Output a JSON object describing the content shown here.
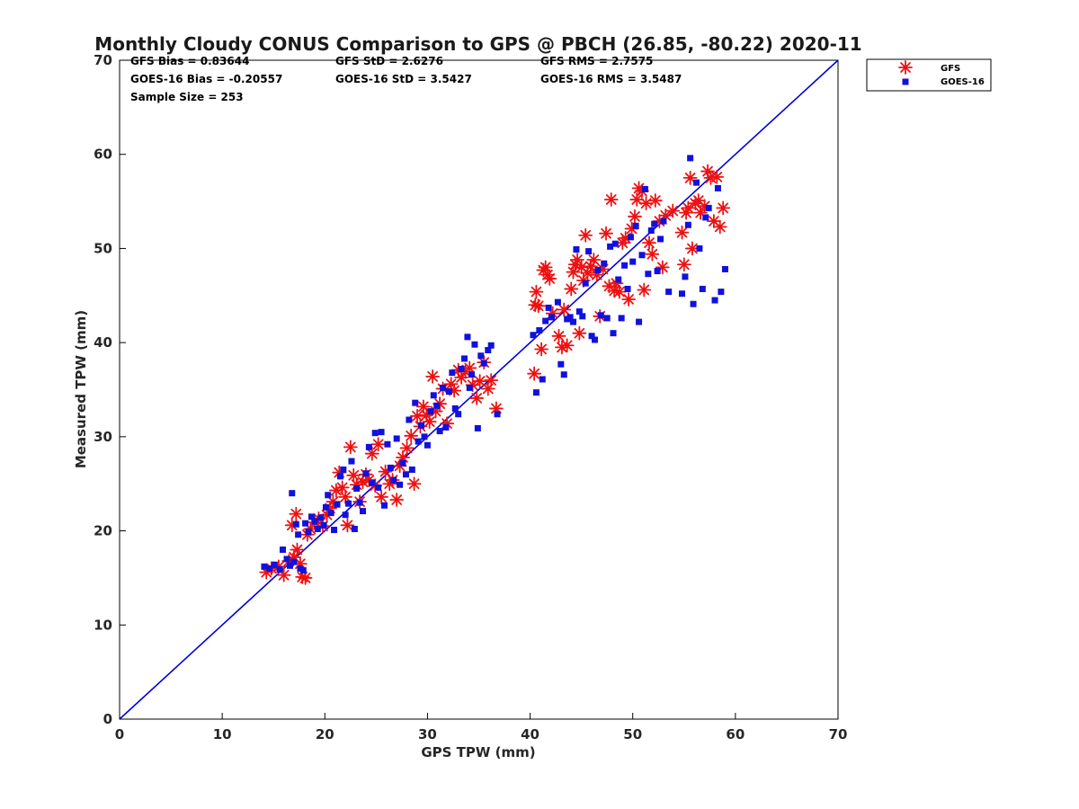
{
  "chart_data": {
    "type": "scatter",
    "title": "Monthly Cloudy CONUS Comparison to GPS @ PBCH (26.85, -80.22) 2020-11",
    "xlabel": "GPS TPW (mm)",
    "ylabel": "Measured TPW (mm)",
    "xlim": [
      0,
      70
    ],
    "ylim": [
      0,
      70
    ],
    "xticks": [
      "0",
      "10",
      "20",
      "30",
      "40",
      "50",
      "60",
      "70"
    ],
    "yticks": [
      "0",
      "10",
      "20",
      "30",
      "40",
      "50",
      "60",
      "70"
    ],
    "grid": false,
    "legend_position": "top-right outside",
    "stats": {
      "gfs_bias": "GFS Bias = 0.83644",
      "goes_bias": "GOES-16 Bias = -0.20557",
      "sample_size": "Sample Size = 253",
      "gfs_std": "GFS StD = 2.6276",
      "goes_std": "GOES-16 StD = 3.5427",
      "gfs_rms": "GFS RMS = 2.7575",
      "goes_rms": "GOES-16 RMS = 3.5487"
    },
    "reference_line": {
      "x": [
        0,
        70
      ],
      "y": [
        0,
        70
      ],
      "color": "#0000dd"
    },
    "series": [
      {
        "name": "GFS",
        "marker": "asterisk",
        "color": "#ee1111",
        "points": [
          [
            14.3,
            15.6
          ],
          [
            14.8,
            16.0
          ],
          [
            15.5,
            16.2
          ],
          [
            16.0,
            15.3
          ],
          [
            16.5,
            16.8
          ],
          [
            17.0,
            17.2
          ],
          [
            17.2,
            21.8
          ],
          [
            16.8,
            20.6
          ],
          [
            17.3,
            18.0
          ],
          [
            17.6,
            16.5
          ],
          [
            17.8,
            15.1
          ],
          [
            18.1,
            15.0
          ],
          [
            18.3,
            19.6
          ],
          [
            18.6,
            20.2
          ],
          [
            19.0,
            20.9
          ],
          [
            19.4,
            21.3
          ],
          [
            19.8,
            20.5
          ],
          [
            20.2,
            21.7
          ],
          [
            20.5,
            22.4
          ],
          [
            20.8,
            23.1
          ],
          [
            21.1,
            24.3
          ],
          [
            21.4,
            26.2
          ],
          [
            21.7,
            24.6
          ],
          [
            22.0,
            23.6
          ],
          [
            22.2,
            20.6
          ],
          [
            22.5,
            28.9
          ],
          [
            22.8,
            25.9
          ],
          [
            23.1,
            24.9
          ],
          [
            23.4,
            23.1
          ],
          [
            23.7,
            25.2
          ],
          [
            24.0,
            26.0
          ],
          [
            24.3,
            25.4
          ],
          [
            24.6,
            28.2
          ],
          [
            24.9,
            24.8
          ],
          [
            25.2,
            29.2
          ],
          [
            25.5,
            23.6
          ],
          [
            25.9,
            26.3
          ],
          [
            26.3,
            25.0
          ],
          [
            26.6,
            25.4
          ],
          [
            27.0,
            23.3
          ],
          [
            27.3,
            26.9
          ],
          [
            27.6,
            27.8
          ],
          [
            28.0,
            28.8
          ],
          [
            28.4,
            30.1
          ],
          [
            28.7,
            25.0
          ],
          [
            29.0,
            32.2
          ],
          [
            29.3,
            31.1
          ],
          [
            29.6,
            33.2
          ],
          [
            29.9,
            32.3
          ],
          [
            30.2,
            31.6
          ],
          [
            30.5,
            36.4
          ],
          [
            30.8,
            32.7
          ],
          [
            31.2,
            33.5
          ],
          [
            31.5,
            35.1
          ],
          [
            31.9,
            31.4
          ],
          [
            32.3,
            35.6
          ],
          [
            32.6,
            34.9
          ],
          [
            33.0,
            37.1
          ],
          [
            33.3,
            36.3
          ],
          [
            33.7,
            36.9
          ],
          [
            34.1,
            37.3
          ],
          [
            34.4,
            35.5
          ],
          [
            34.8,
            34.1
          ],
          [
            35.1,
            35.9
          ],
          [
            35.5,
            37.9
          ],
          [
            35.9,
            35.1
          ],
          [
            36.2,
            36.0
          ],
          [
            36.7,
            33.0
          ],
          [
            40.4,
            36.7
          ],
          [
            40.5,
            44.0
          ],
          [
            40.6,
            45.4
          ],
          [
            40.8,
            43.9
          ],
          [
            41.1,
            39.3
          ],
          [
            41.3,
            47.7
          ],
          [
            41.5,
            48.0
          ],
          [
            41.7,
            47.2
          ],
          [
            41.9,
            46.8
          ],
          [
            42.2,
            43.1
          ],
          [
            42.8,
            40.7
          ],
          [
            43.1,
            39.5
          ],
          [
            43.3,
            43.5
          ],
          [
            43.6,
            39.7
          ],
          [
            44.0,
            45.7
          ],
          [
            44.2,
            47.5
          ],
          [
            44.4,
            48.3
          ],
          [
            44.6,
            48.8
          ],
          [
            44.8,
            41.0
          ],
          [
            45.0,
            48.0
          ],
          [
            45.2,
            46.6
          ],
          [
            45.4,
            51.4
          ],
          [
            45.6,
            47.4
          ],
          [
            45.9,
            48.1
          ],
          [
            46.2,
            48.8
          ],
          [
            46.5,
            47.2
          ],
          [
            46.8,
            42.8
          ],
          [
            47.1,
            47.8
          ],
          [
            47.4,
            51.6
          ],
          [
            47.7,
            46.0
          ],
          [
            47.9,
            55.2
          ],
          [
            48.2,
            45.5
          ],
          [
            48.4,
            46.3
          ],
          [
            48.7,
            45.4
          ],
          [
            49.0,
            50.6
          ],
          [
            49.3,
            51.1
          ],
          [
            49.6,
            44.6
          ],
          [
            49.9,
            52.1
          ],
          [
            50.2,
            53.4
          ],
          [
            50.4,
            55.2
          ],
          [
            50.6,
            56.4
          ],
          [
            50.9,
            56.1
          ],
          [
            51.1,
            45.6
          ],
          [
            51.3,
            54.8
          ],
          [
            51.6,
            50.6
          ],
          [
            51.9,
            49.4
          ],
          [
            52.2,
            55.1
          ],
          [
            52.6,
            52.9
          ],
          [
            52.9,
            48.0
          ],
          [
            53.2,
            53.5
          ],
          [
            53.9,
            54.0
          ],
          [
            54.8,
            51.7
          ],
          [
            55.0,
            48.3
          ],
          [
            55.2,
            53.8
          ],
          [
            55.4,
            54.3
          ],
          [
            55.6,
            57.5
          ],
          [
            55.8,
            50.0
          ],
          [
            56.1,
            54.8
          ],
          [
            56.4,
            55.1
          ],
          [
            56.6,
            53.8
          ],
          [
            57.0,
            54.5
          ],
          [
            57.3,
            58.2
          ],
          [
            57.6,
            57.5
          ],
          [
            57.9,
            52.9
          ],
          [
            58.2,
            57.6
          ],
          [
            58.5,
            52.3
          ],
          [
            58.8,
            54.3
          ]
        ]
      },
      {
        "name": "GOES-16",
        "marker": "square",
        "color": "#1111dd",
        "points": [
          [
            14.1,
            16.2
          ],
          [
            14.6,
            16.0
          ],
          [
            15.1,
            16.4
          ],
          [
            15.6,
            15.9
          ],
          [
            15.9,
            18.0
          ],
          [
            16.3,
            17.0
          ],
          [
            16.6,
            16.3
          ],
          [
            16.8,
            24.0
          ],
          [
            17.0,
            16.7
          ],
          [
            17.2,
            20.7
          ],
          [
            17.4,
            19.6
          ],
          [
            17.6,
            16.0
          ],
          [
            17.9,
            15.8
          ],
          [
            18.1,
            20.8
          ],
          [
            18.4,
            19.9
          ],
          [
            18.7,
            21.5
          ],
          [
            19.0,
            21.0
          ],
          [
            19.3,
            20.2
          ],
          [
            19.6,
            21.4
          ],
          [
            19.9,
            20.6
          ],
          [
            20.1,
            22.5
          ],
          [
            20.3,
            23.8
          ],
          [
            20.6,
            21.9
          ],
          [
            20.9,
            20.1
          ],
          [
            21.2,
            22.8
          ],
          [
            21.5,
            25.8
          ],
          [
            21.8,
            26.5
          ],
          [
            22.0,
            21.7
          ],
          [
            22.3,
            22.9
          ],
          [
            22.6,
            27.4
          ],
          [
            22.9,
            20.2
          ],
          [
            23.1,
            24.5
          ],
          [
            23.4,
            23.0
          ],
          [
            23.7,
            22.1
          ],
          [
            24.0,
            26.1
          ],
          [
            24.3,
            28.9
          ],
          [
            24.6,
            25.1
          ],
          [
            24.9,
            30.4
          ],
          [
            25.2,
            24.6
          ],
          [
            25.5,
            30.5
          ],
          [
            25.8,
            22.7
          ],
          [
            26.1,
            29.2
          ],
          [
            26.4,
            26.7
          ],
          [
            26.7,
            25.4
          ],
          [
            27.0,
            29.8
          ],
          [
            27.3,
            24.9
          ],
          [
            27.6,
            27.2
          ],
          [
            27.9,
            26.0
          ],
          [
            28.2,
            31.8
          ],
          [
            28.5,
            26.5
          ],
          [
            28.8,
            33.6
          ],
          [
            29.1,
            29.5
          ],
          [
            29.4,
            31.2
          ],
          [
            29.7,
            30.0
          ],
          [
            30.0,
            29.1
          ],
          [
            30.3,
            32.7
          ],
          [
            30.6,
            34.4
          ],
          [
            30.9,
            33.3
          ],
          [
            31.2,
            30.6
          ],
          [
            31.5,
            35.2
          ],
          [
            31.8,
            31.0
          ],
          [
            32.1,
            34.8
          ],
          [
            32.4,
            36.8
          ],
          [
            32.7,
            33.0
          ],
          [
            33.0,
            32.4
          ],
          [
            33.3,
            37.2
          ],
          [
            33.6,
            38.3
          ],
          [
            33.9,
            40.6
          ],
          [
            34.1,
            35.2
          ],
          [
            34.3,
            36.6
          ],
          [
            34.6,
            39.8
          ],
          [
            34.9,
            30.9
          ],
          [
            35.2,
            38.6
          ],
          [
            35.5,
            37.8
          ],
          [
            35.9,
            39.2
          ],
          [
            36.2,
            39.7
          ],
          [
            36.8,
            32.4
          ],
          [
            40.3,
            40.8
          ],
          [
            40.6,
            34.7
          ],
          [
            40.9,
            41.3
          ],
          [
            41.2,
            36.1
          ],
          [
            41.5,
            42.3
          ],
          [
            41.8,
            43.7
          ],
          [
            42.1,
            42.7
          ],
          [
            42.7,
            44.3
          ],
          [
            43.0,
            37.7
          ],
          [
            43.3,
            36.6
          ],
          [
            43.6,
            42.5
          ],
          [
            43.9,
            42.7
          ],
          [
            44.2,
            42.2
          ],
          [
            44.5,
            49.9
          ],
          [
            44.8,
            43.3
          ],
          [
            45.1,
            42.8
          ],
          [
            45.4,
            46.3
          ],
          [
            45.7,
            49.7
          ],
          [
            46.0,
            40.7
          ],
          [
            46.3,
            40.3
          ],
          [
            46.6,
            47.7
          ],
          [
            46.9,
            42.9
          ],
          [
            47.2,
            48.4
          ],
          [
            47.5,
            42.6
          ],
          [
            47.8,
            50.2
          ],
          [
            48.1,
            41.0
          ],
          [
            48.3,
            50.5
          ],
          [
            48.6,
            46.7
          ],
          [
            48.9,
            42.6
          ],
          [
            49.2,
            48.2
          ],
          [
            49.5,
            45.7
          ],
          [
            49.8,
            51.2
          ],
          [
            50.0,
            48.6
          ],
          [
            50.3,
            52.4
          ],
          [
            50.6,
            42.2
          ],
          [
            50.9,
            49.3
          ],
          [
            51.2,
            56.3
          ],
          [
            51.5,
            47.3
          ],
          [
            51.8,
            51.9
          ],
          [
            52.1,
            52.6
          ],
          [
            52.4,
            47.6
          ],
          [
            52.7,
            51.0
          ],
          [
            53.0,
            52.9
          ],
          [
            53.5,
            45.4
          ],
          [
            54.8,
            45.2
          ],
          [
            55.1,
            47.0
          ],
          [
            55.4,
            52.5
          ],
          [
            55.6,
            59.6
          ],
          [
            55.9,
            44.1
          ],
          [
            56.2,
            57.0
          ],
          [
            56.5,
            50.0
          ],
          [
            56.8,
            45.7
          ],
          [
            57.1,
            53.3
          ],
          [
            57.4,
            54.3
          ],
          [
            58.0,
            44.5
          ],
          [
            58.3,
            56.4
          ],
          [
            58.6,
            45.4
          ],
          [
            59.0,
            47.8
          ]
        ]
      }
    ]
  }
}
